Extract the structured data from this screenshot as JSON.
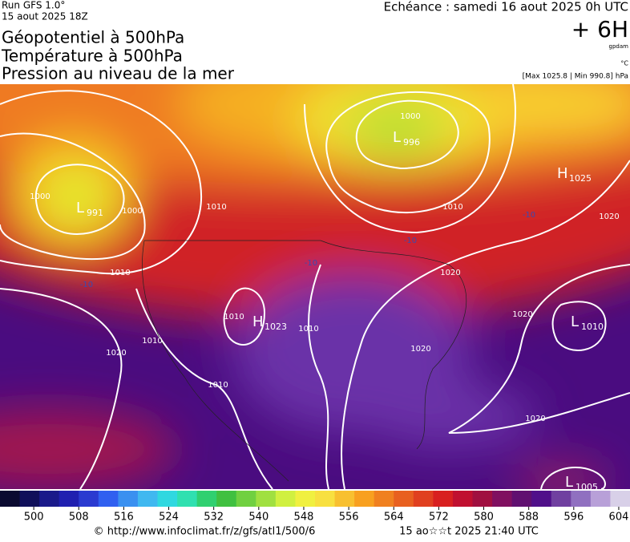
{
  "header": {
    "run": "Run GFS 1.0°",
    "date": "15 aout 2025 18Z",
    "echeance": "Echéance : samedi 16 aout 2025 0h UTC",
    "titles": [
      "Géopotentiel à 500hPa",
      "Température à 500hPa",
      "Pression au niveau de la mer"
    ],
    "lead": "+ 6H",
    "unit_geo": "gpdam",
    "unit_temp": "°C",
    "range": "[Max 1025.8 | Min 990.8] hPa"
  },
  "map": {
    "centers": [
      {
        "letter": "L",
        "value": "996"
      },
      {
        "letter": "L",
        "value": "991"
      },
      {
        "letter": "H",
        "value": "1023"
      },
      {
        "letter": "H",
        "value": "1025"
      },
      {
        "letter": "L",
        "value": "1010"
      },
      {
        "letter": "L",
        "value": "1005"
      }
    ],
    "isobar_labels": [
      "1000",
      "1000",
      "1000",
      "1010",
      "1010",
      "1010",
      "1010",
      "1010",
      "1010",
      "1010",
      "1020",
      "1020",
      "1020",
      "1020",
      "1020",
      "1020"
    ],
    "temp_labels": [
      "-10",
      "-10",
      "-10",
      "-10"
    ]
  },
  "colorbar": {
    "range": [
      494,
      606
    ],
    "ticks": [
      500,
      508,
      516,
      524,
      532,
      540,
      548,
      556,
      564,
      572,
      580,
      588,
      596,
      604
    ],
    "colors": [
      "#0a0a30",
      "#10105a",
      "#1a1a8a",
      "#2020b0",
      "#2a3ad0",
      "#3060f0",
      "#3a90f0",
      "#40b8f0",
      "#30d8e0",
      "#30e0b0",
      "#30d070",
      "#40c040",
      "#70d040",
      "#a0e040",
      "#d0f040",
      "#f0f040",
      "#f8e040",
      "#f8c030",
      "#f8a020",
      "#f08020",
      "#e86020",
      "#e04020",
      "#d82020",
      "#c01030",
      "#a01040",
      "#801060",
      "#601070",
      "#50108a",
      "#7040a0",
      "#9070c0",
      "#b8a0d8",
      "#d8d0e8"
    ]
  },
  "footer": {
    "url": "© http://www.infoclimat.fr/z/gfs/atl1/500/6",
    "stamp": "15 ao☆☆t 2025 21:40 UTC"
  }
}
